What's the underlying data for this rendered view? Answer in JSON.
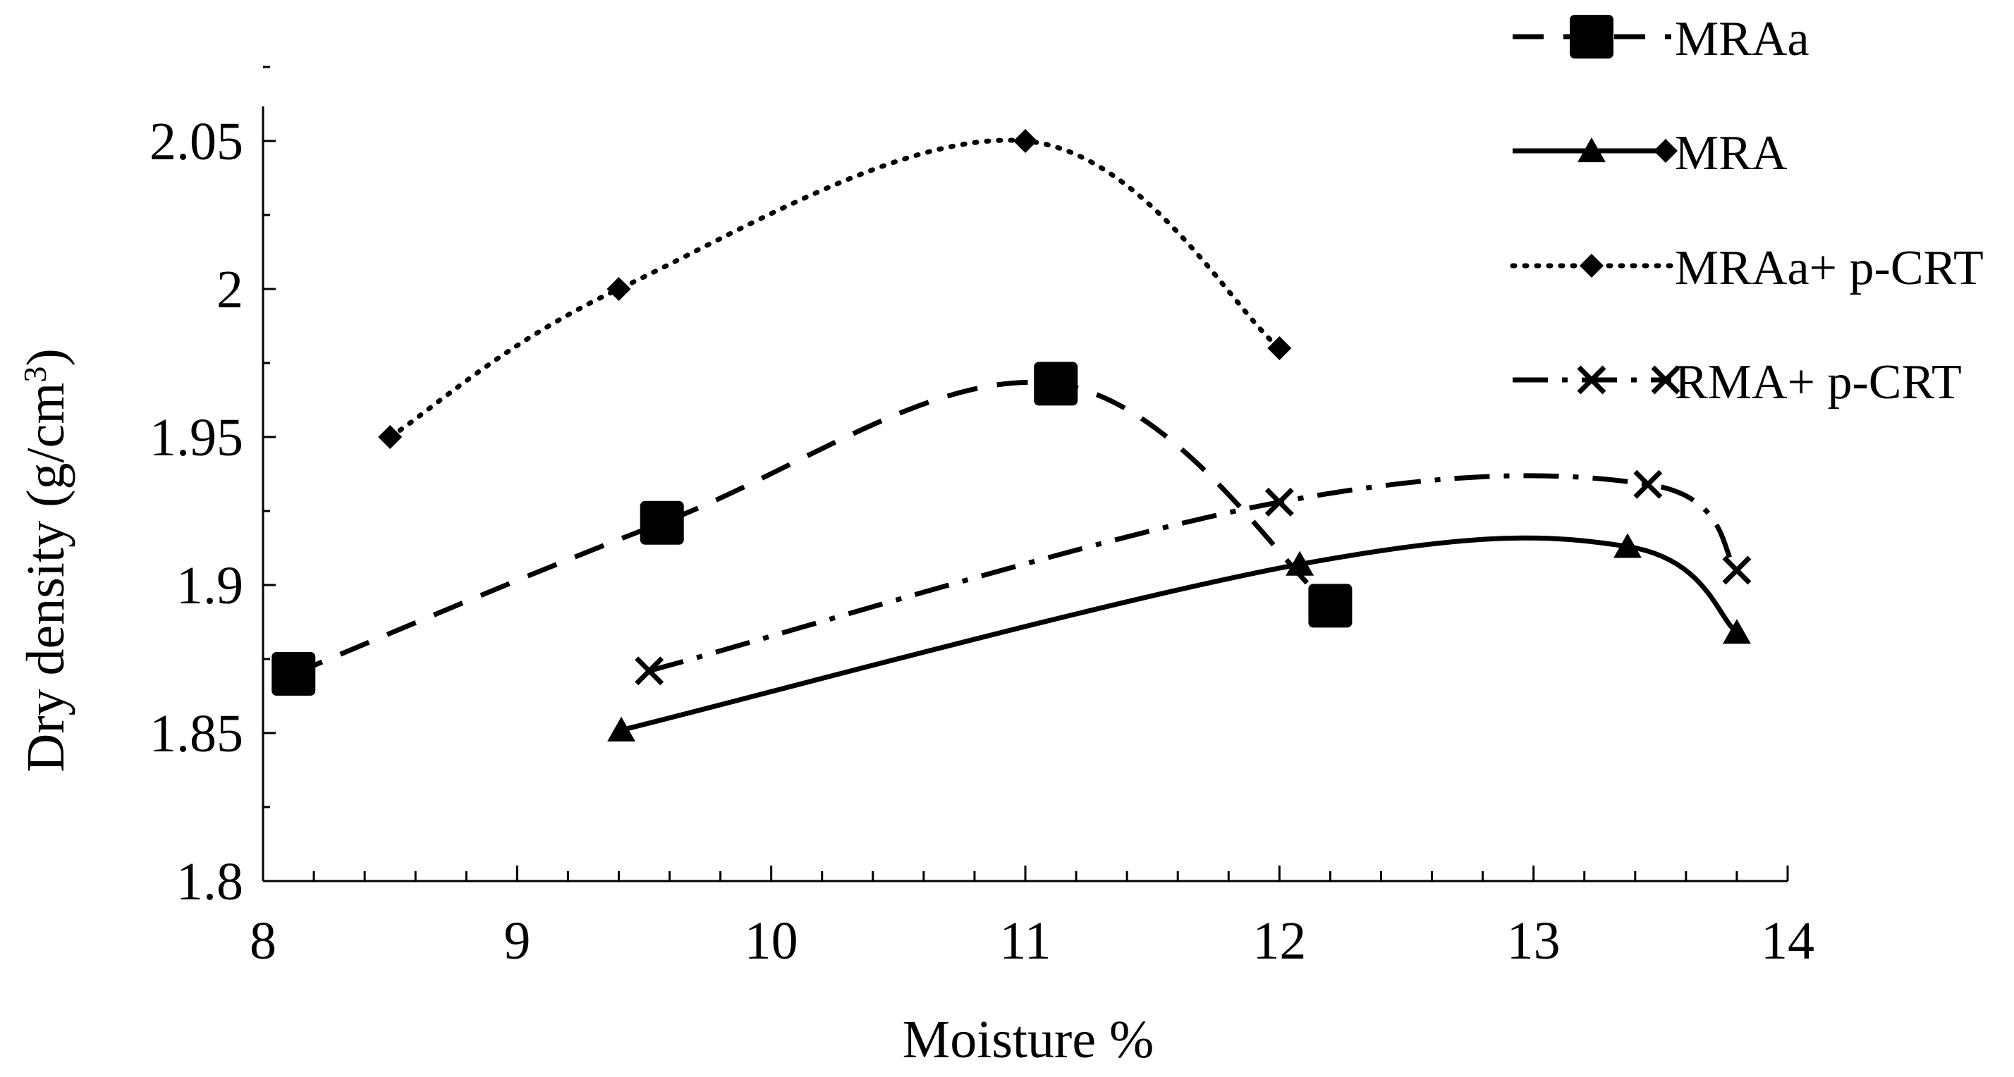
{
  "chart_data": {
    "type": "line",
    "title": "",
    "xlabel": "Moisture %",
    "ylabel_main": "Dry density (g/cm",
    "ylabel_sup": "3",
    "ylabel_close": ")",
    "xlim": [
      8,
      14
    ],
    "ylim": [
      1.8,
      2.06
    ],
    "x_ticks": [
      8,
      9,
      10,
      11,
      12,
      13,
      14
    ],
    "y_ticks": [
      1.8,
      1.85,
      1.9,
      1.95,
      2,
      2.05
    ],
    "x_tick_labels": [
      "8",
      "9",
      "10",
      "11",
      "12",
      "13",
      "14"
    ],
    "y_tick_labels": [
      "1.8",
      "1.85",
      "1.9",
      "1.95",
      "2",
      "2.05"
    ],
    "grid": false,
    "legend_position": "top-right",
    "series": [
      {
        "name": "MRAa",
        "legend_label": "MRAa",
        "line_style": "dashed",
        "marker": "square",
        "x": [
          8.12,
          9.57,
          11.12,
          12.2
        ],
        "y": [
          1.87,
          1.921,
          1.968,
          1.893
        ]
      },
      {
        "name": "MRA",
        "legend_label": "MRA",
        "line_style": "solid",
        "marker": "triangle",
        "x": [
          9.41,
          12.08,
          13.37,
          13.8
        ],
        "y": [
          1.851,
          1.907,
          1.913,
          1.884
        ]
      },
      {
        "name": "MRAa+ p-CRT",
        "legend_label": "MRAa+ p-CRT",
        "line_style": "dotted",
        "marker": "diamond",
        "x": [
          8.5,
          9.4,
          11.0,
          12.0
        ],
        "y": [
          1.95,
          2.0,
          2.05,
          1.98
        ]
      },
      {
        "name": "RMA+ p-CRT",
        "legend_label": "RMA+ p-CRT",
        "line_style": "dash-dot",
        "marker": "x",
        "x": [
          9.52,
          12.0,
          13.45,
          13.8
        ],
        "y": [
          1.871,
          1.928,
          1.934,
          1.905
        ]
      }
    ]
  }
}
